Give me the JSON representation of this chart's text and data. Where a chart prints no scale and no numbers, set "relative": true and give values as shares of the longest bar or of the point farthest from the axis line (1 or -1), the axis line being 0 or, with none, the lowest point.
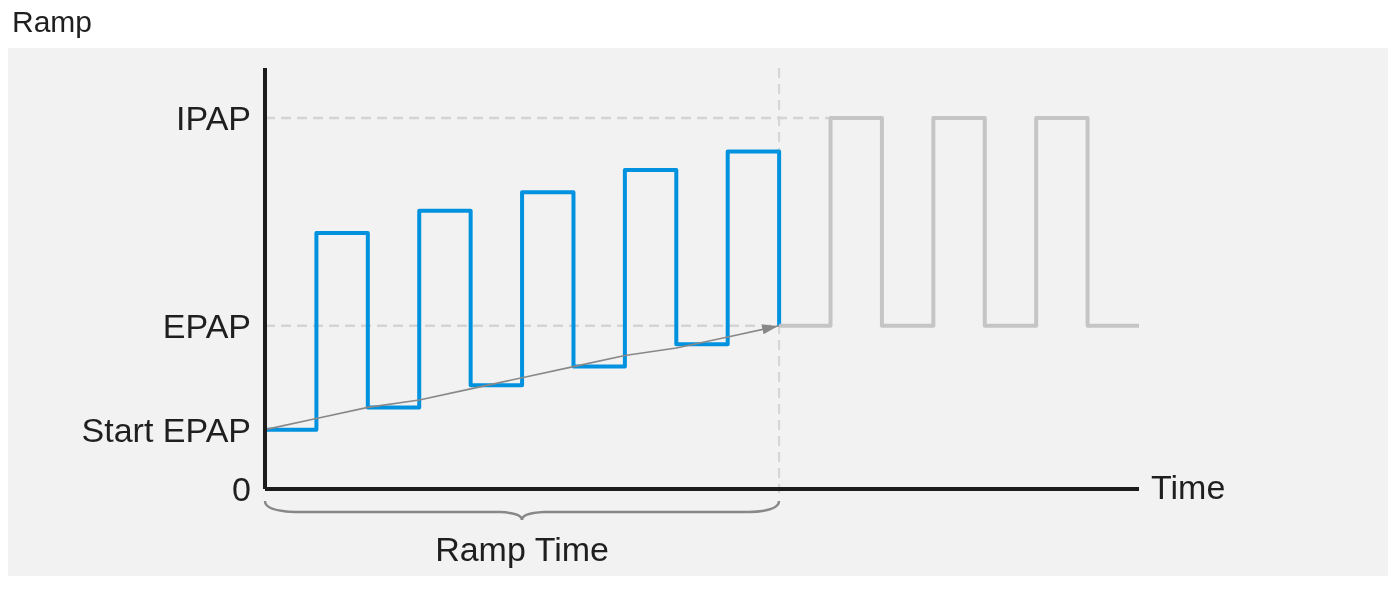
{
  "chart_data": {
    "type": "step",
    "title": "Ramp",
    "xlabel": "Time",
    "annotations": [
      "Start EPAP",
      "0",
      "Ramp Time"
    ],
    "categories": [
      null,
      null,
      null,
      null,
      null,
      null,
      null,
      null,
      null,
      null,
      null,
      null,
      null,
      null,
      null,
      null,
      null,
      null
    ],
    "relative": true,
    "series": [
      {
        "color": "#0092df",
        "values": [
          0.16,
          0.69,
          0.22,
          0.75,
          0.28,
          0.8,
          0.33,
          0.86,
          0.39,
          0.91,
          0.44,
          null,
          null,
          null,
          null,
          null,
          null,
          null
        ]
      },
      {
        "color": "#c5c5c5",
        "values": [
          null,
          null,
          null,
          null,
          null,
          null,
          null,
          null,
          null,
          null,
          0.44,
          1,
          0.44,
          1,
          0.44,
          1,
          0.44,
          0.44
        ]
      },
      {
        "type": "line",
        "color": "#888888",
        "values": [
          0.16,
          0.19,
          0.22,
          0.24,
          0.27,
          0.3,
          0.33,
          0.36,
          0.38,
          0.41,
          0.44,
          null,
          null,
          null,
          null,
          null,
          null,
          null
        ]
      }
    ],
    "ref_lines": [
      {
        "axis": "y",
        "value": 1,
        "label": "IPAP",
        "color": "#d4d4d4",
        "line_style": "dashed"
      },
      {
        "axis": "y",
        "value": 0.44,
        "label": "EPAP",
        "color": "#d4d4d4",
        "line_style": "dashed"
      }
    ]
  }
}
